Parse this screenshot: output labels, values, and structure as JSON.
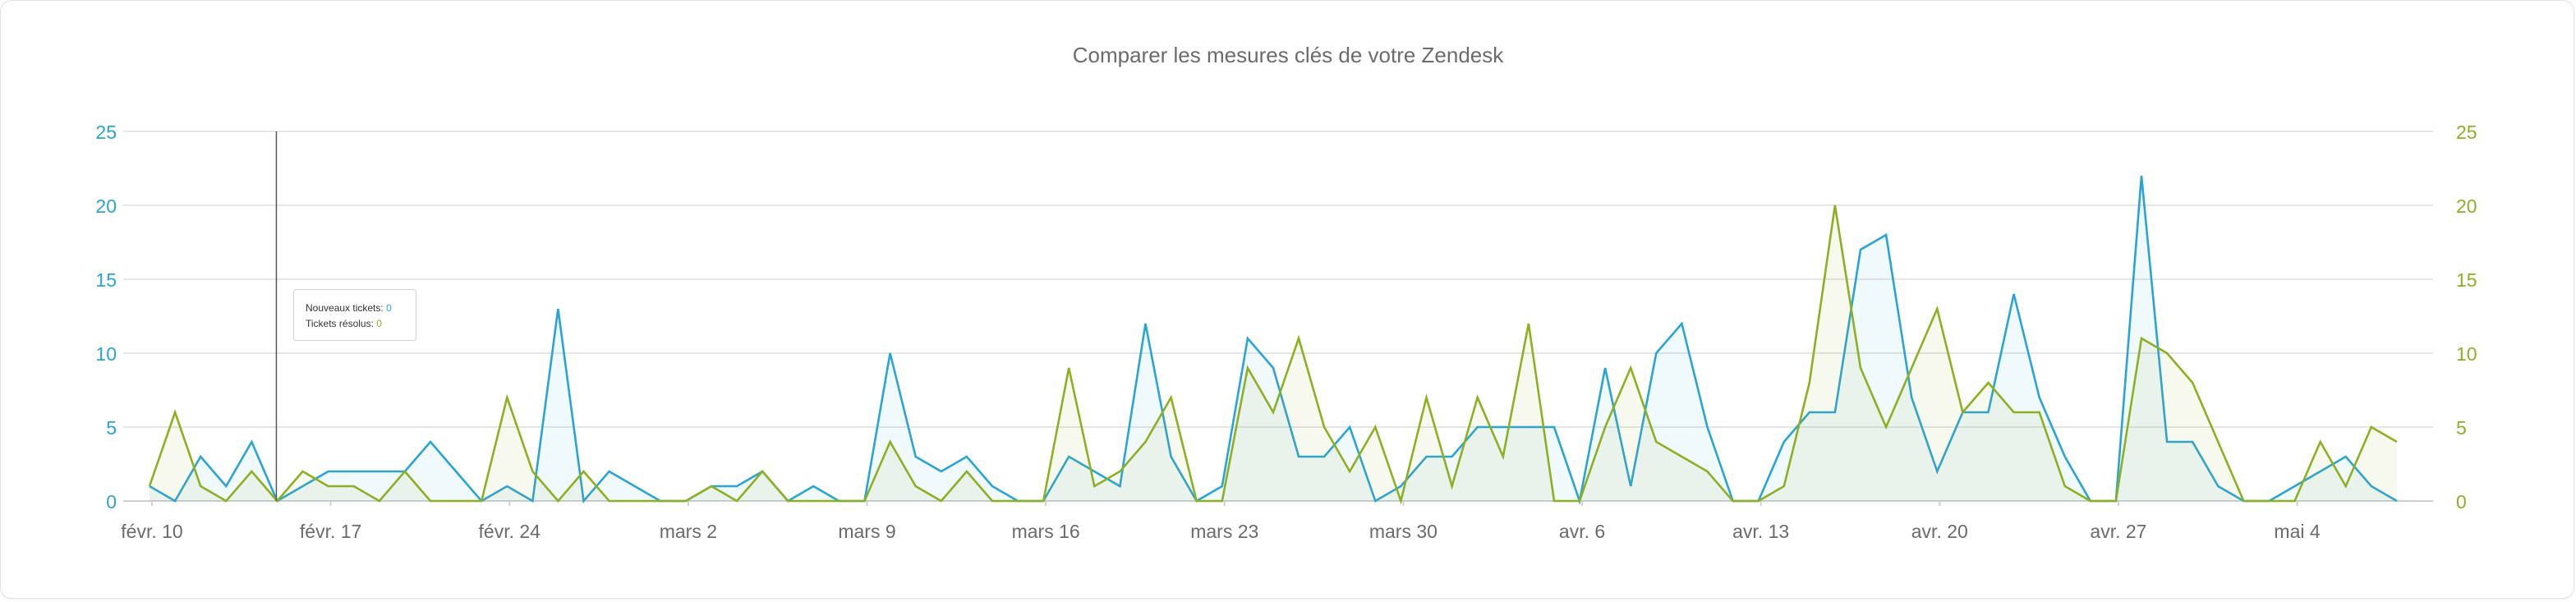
{
  "chart_data": {
    "type": "line",
    "title": "Comparer les mesures clés de votre Zendesk",
    "categories_labels": [
      "févr. 10",
      "févr. 17",
      "févr. 24",
      "mars 2",
      "mars 9",
      "mars 16",
      "mars 23",
      "mars 30",
      "avr. 6",
      "avr. 13",
      "avr. 20",
      "avr. 27",
      "mai 4"
    ],
    "ylim_left": [
      0,
      25
    ],
    "ylim_right": [
      0,
      25
    ],
    "yticks": [
      0,
      5,
      10,
      15,
      20,
      25
    ],
    "grid": true,
    "colors": {
      "left_axis": "#2aa4d4",
      "right_axis": "#8cb021"
    },
    "series": [
      {
        "name": "Nouveaux tickets",
        "axis": "left",
        "color": "#2aa4d4",
        "values": [
          1,
          0,
          3,
          1,
          4,
          0,
          1,
          2,
          2,
          2,
          2,
          4,
          2,
          0,
          1,
          0,
          13,
          0,
          2,
          1,
          0,
          0,
          1,
          1,
          2,
          0,
          1,
          0,
          0,
          10,
          3,
          2,
          3,
          1,
          0,
          0,
          3,
          2,
          1,
          12,
          3,
          0,
          1,
          11,
          9,
          3,
          3,
          5,
          0,
          1,
          3,
          3,
          5,
          5,
          5,
          5,
          0,
          9,
          1,
          10,
          12,
          5,
          0,
          0,
          4,
          6,
          6,
          17,
          18,
          7,
          2,
          6,
          6,
          14,
          7,
          3,
          0,
          0,
          22,
          4,
          4,
          1,
          0,
          0,
          1,
          2,
          3,
          1,
          0
        ]
      },
      {
        "name": "Tickets résolus",
        "axis": "right",
        "color": "#8cb021",
        "values": [
          1,
          6,
          1,
          0,
          2,
          0,
          2,
          1,
          1,
          0,
          2,
          0,
          0,
          0,
          7,
          2,
          0,
          2,
          0,
          0,
          0,
          0,
          1,
          0,
          2,
          0,
          0,
          0,
          0,
          4,
          1,
          0,
          2,
          0,
          0,
          0,
          9,
          1,
          2,
          4,
          7,
          0,
          0,
          9,
          6,
          11,
          5,
          2,
          5,
          0,
          7,
          1,
          7,
          3,
          12,
          0,
          0,
          5,
          9,
          4,
          3,
          2,
          0,
          0,
          1,
          8,
          20,
          9,
          5,
          9,
          13,
          6,
          8,
          6,
          6,
          1,
          0,
          0,
          11,
          10,
          8,
          4,
          0,
          0,
          0,
          4,
          1,
          5,
          4
        ]
      }
    ]
  },
  "tooltip": {
    "label1": "Nouveaux tickets:",
    "value1": "0",
    "label2": "Tickets résolus:",
    "value2": "0"
  }
}
